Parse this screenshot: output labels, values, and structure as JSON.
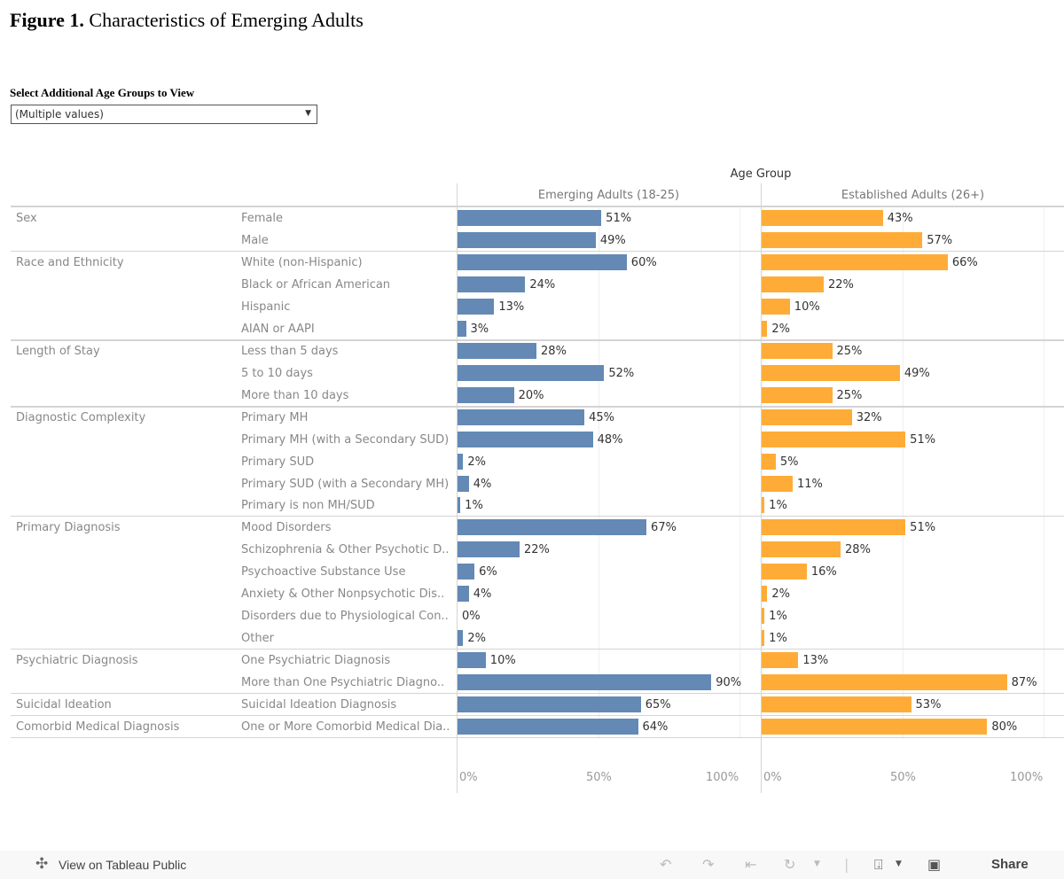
{
  "title": {
    "bold": "Figure 1.",
    "rest": "Characteristics of Emerging Adults"
  },
  "filter": {
    "label": "Select Additional Age Groups to View",
    "value": "(Multiple values)"
  },
  "footer": {
    "tableau_link": "View on Tableau Public",
    "share_label": "Share"
  },
  "colors": {
    "emerging": "#6389b4",
    "established": "#feac37"
  },
  "chart_data": {
    "type": "bar",
    "title": "Characteristics of Emerging Adults",
    "axis_title": "Age Group",
    "xlim": [
      0,
      100
    ],
    "x_ticks": [
      "0%",
      "50%",
      "100%"
    ],
    "grid": true,
    "series": [
      {
        "name": "Emerging Adults (18-25)",
        "values": [
          51,
          49,
          60,
          24,
          13,
          3,
          28,
          52,
          20,
          45,
          48,
          2,
          4,
          1,
          67,
          22,
          6,
          4,
          0,
          2,
          10,
          90,
          65,
          64
        ]
      },
      {
        "name": "Established Adults (26+)",
        "values": [
          43,
          57,
          66,
          22,
          10,
          2,
          25,
          49,
          25,
          32,
          51,
          5,
          11,
          1,
          51,
          28,
          16,
          2,
          1,
          1,
          13,
          87,
          53,
          80
        ]
      }
    ],
    "groups": [
      {
        "name": "Sex",
        "categories": [
          "Female",
          "Male"
        ]
      },
      {
        "name": "Race and Ethnicity",
        "categories": [
          "White (non-Hispanic)",
          "Black or African American",
          "Hispanic",
          "AIAN or AAPI"
        ]
      },
      {
        "name": "Length of Stay",
        "categories": [
          "Less than 5 days",
          "5 to 10 days",
          "More than 10 days"
        ]
      },
      {
        "name": "Diagnostic Complexity",
        "categories": [
          "Primary MH",
          "Primary MH (with a Secondary SUD)",
          "Primary SUD",
          "Primary SUD (with a Secondary MH)",
          "Primary is non MH/SUD"
        ]
      },
      {
        "name": "Primary Diagnosis",
        "categories": [
          "Mood Disorders",
          "Schizophrenia & Other Psychotic D..",
          "Psychoactive Substance Use",
          "Anxiety & Other Nonpsychotic Dis..",
          "Disorders due to Physiological Con..",
          "Other"
        ]
      },
      {
        "name": "Psychiatric Diagnosis",
        "categories": [
          "One Psychiatric Diagnosis",
          "More than One Psychiatric Diagno.."
        ]
      },
      {
        "name": "Suicidal Ideation",
        "categories": [
          "Suicidal Ideation Diagnosis"
        ]
      },
      {
        "name": "Comorbid Medical Diagnosis",
        "categories": [
          "One or More Comorbid Medical Dia.."
        ]
      }
    ]
  }
}
